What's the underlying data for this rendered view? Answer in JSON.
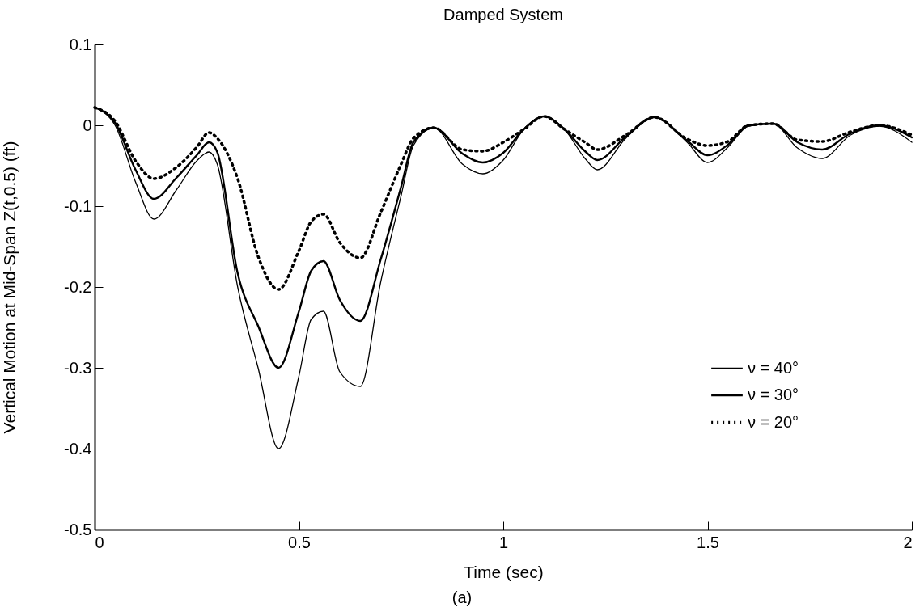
{
  "chart_data": {
    "type": "line",
    "title": "Damped System",
    "xlabel": "Time (sec)",
    "ylabel": "Vertical Motion at Mid-Span Z(t,0.5) (ft)",
    "annotations": [
      "(a)"
    ],
    "x": [
      0,
      0.05,
      0.1,
      0.145,
      0.2,
      0.25,
      0.28,
      0.3,
      0.35,
      0.4,
      0.45,
      0.5,
      0.53,
      0.56,
      0.6,
      0.65,
      0.7,
      0.75,
      0.78,
      0.83,
      0.9,
      0.95,
      1.0,
      1.05,
      1.1,
      1.15,
      1.2,
      1.23,
      1.3,
      1.37,
      1.45,
      1.5,
      1.55,
      1.6,
      1.66,
      1.72,
      1.78,
      1.85,
      1.92,
      2.0
    ],
    "series": [
      {
        "name": "ν = 40°",
        "color": "#000000",
        "line_style": "solid",
        "values": [
          0.022,
          0.0,
          -0.07,
          -0.116,
          -0.08,
          -0.044,
          -0.033,
          -0.048,
          -0.2,
          -0.3,
          -0.4,
          -0.31,
          -0.24,
          -0.23,
          -0.305,
          -0.323,
          -0.194,
          -0.087,
          -0.025,
          -0.003,
          -0.048,
          -0.06,
          -0.043,
          -0.005,
          0.011,
          -0.005,
          -0.041,
          -0.055,
          -0.016,
          0.01,
          -0.021,
          -0.046,
          -0.027,
          -0.001,
          0.002,
          -0.028,
          -0.041,
          -0.012,
          -0.001,
          -0.021
        ]
      },
      {
        "name": "ν = 30°",
        "color": "#000000",
        "line_style": "solid",
        "values": [
          0.022,
          0.003,
          -0.055,
          -0.091,
          -0.065,
          -0.037,
          -0.021,
          -0.033,
          -0.183,
          -0.248,
          -0.3,
          -0.23,
          -0.18,
          -0.168,
          -0.216,
          -0.242,
          -0.166,
          -0.076,
          -0.021,
          -0.003,
          -0.035,
          -0.046,
          -0.034,
          -0.005,
          0.011,
          -0.005,
          -0.032,
          -0.043,
          -0.014,
          0.01,
          -0.019,
          -0.037,
          -0.024,
          0.0,
          0.002,
          -0.021,
          -0.03,
          -0.01,
          0.0,
          -0.015
        ]
      },
      {
        "name": "ν = 20°",
        "color": "#000000",
        "line_style": "dotted",
        "values": [
          0.022,
          0.005,
          -0.044,
          -0.066,
          -0.052,
          -0.027,
          -0.009,
          -0.016,
          -0.066,
          -0.162,
          -0.203,
          -0.155,
          -0.119,
          -0.11,
          -0.145,
          -0.164,
          -0.108,
          -0.048,
          -0.016,
          -0.003,
          -0.03,
          -0.032,
          -0.021,
          -0.005,
          0.011,
          -0.005,
          -0.021,
          -0.03,
          -0.012,
          0.01,
          -0.017,
          -0.025,
          -0.02,
          0.0,
          0.002,
          -0.018,
          -0.02,
          -0.008,
          0.0,
          -0.012
        ]
      }
    ],
    "xlim": [
      0,
      2
    ],
    "xticks": [
      0,
      0.5,
      1,
      1.5,
      2
    ],
    "ylim": [
      -0.5,
      0.1
    ],
    "yticks": [
      0.1,
      0,
      -0.1,
      -0.2,
      -0.3,
      -0.4,
      -0.5
    ],
    "legend": "right",
    "grid": false,
    "marker": "none"
  }
}
